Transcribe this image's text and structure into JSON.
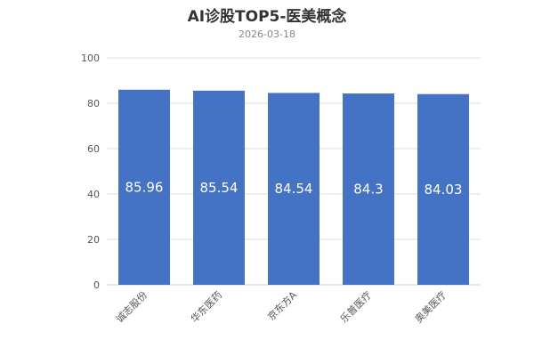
{
  "chart_data": {
    "type": "bar",
    "title": "AI诊股TOP5-医美概念",
    "subtitle": "2026-03-18",
    "categories": [
      "诚志股份",
      "华东医药",
      "京东方A",
      "乐普医疗",
      "奥美医疗"
    ],
    "values": [
      85.96,
      85.54,
      84.54,
      84.3,
      84.03
    ],
    "data_labels": [
      "85.96",
      "85.54",
      "84.54",
      "84.3",
      "84.03"
    ],
    "ylim": [
      0,
      100
    ],
    "yticks": [
      0,
      20,
      40,
      60,
      80,
      100
    ],
    "grid": true,
    "legend": "none",
    "bar_color": "#4472c4",
    "label_color": "#ffffff"
  }
}
